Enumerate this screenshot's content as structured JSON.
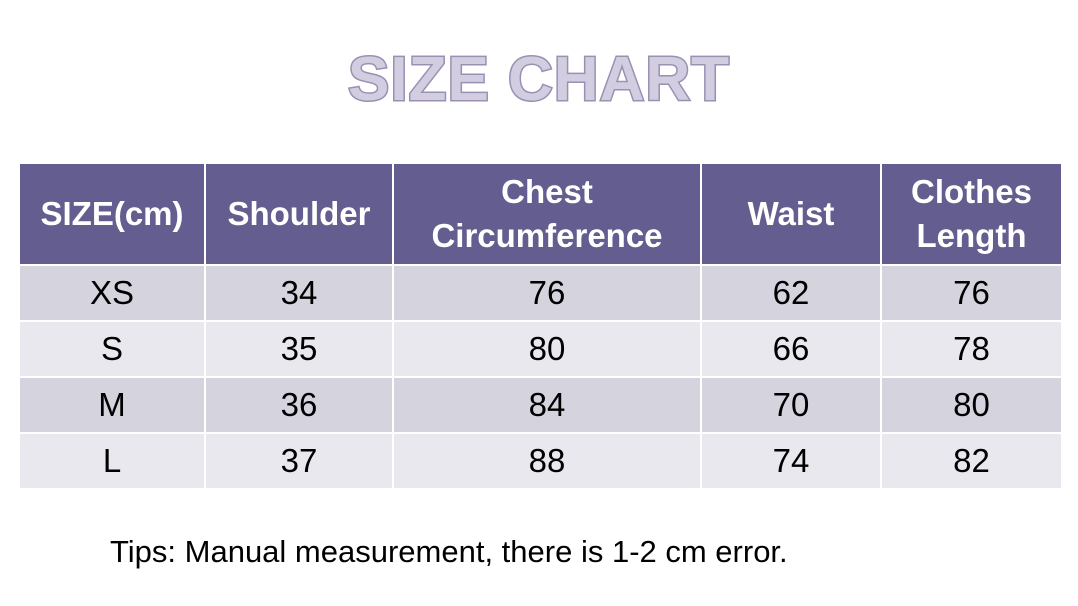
{
  "title": "SIZE CHART",
  "table": {
    "headers": [
      "SIZE(cm)",
      "Shoulder",
      "Chest Circumference",
      "Waist",
      "Clothes Length"
    ],
    "rows": [
      [
        "XS",
        "34",
        "76",
        "62",
        "76"
      ],
      [
        "S",
        "35",
        "80",
        "66",
        "78"
      ],
      [
        "M",
        "36",
        "84",
        "70",
        "80"
      ],
      [
        "L",
        "37",
        "88",
        "74",
        "82"
      ]
    ]
  },
  "tips": "Tips: Manual measurement, there is 1-2 cm error.",
  "colors": {
    "header_bg": "#645d8f",
    "row_odd_bg": "#d5d3de",
    "row_even_bg": "#e8e8ee",
    "title_fill": "#d2cde0",
    "title_outline": "#9a90b2"
  }
}
